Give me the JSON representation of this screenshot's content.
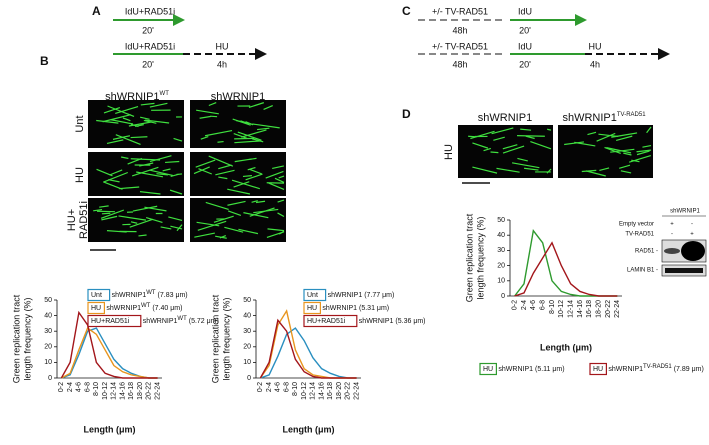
{
  "panel_a": {
    "label": "A",
    "row1": {
      "treatment": "IdU+RAD51i",
      "time": "20'"
    },
    "row2": {
      "treatment": "IdU+RAD51i",
      "time": "20'",
      "chase": "HU",
      "chase_time": "4h"
    }
  },
  "panel_b": {
    "label": "B",
    "columns": [
      {
        "text": "shWRNIP1",
        "sup": "WT"
      },
      {
        "text": "shWRNIP1"
      }
    ],
    "rows": [
      "Unt",
      "HU",
      [
        "HU+",
        "RAD51i"
      ]
    ]
  },
  "panel_c": {
    "label": "C",
    "row1": {
      "pre": "+/- TV-RAD51",
      "pre_time": "48h",
      "treatment": "IdU",
      "time": "20'"
    },
    "row2": {
      "pre": "+/- TV-RAD51",
      "pre_time": "48h",
      "treatment": "IdU",
      "time": "20'",
      "chase": "HU",
      "chase_time": "4h"
    }
  },
  "panel_d": {
    "label": "D",
    "columns": [
      {
        "text": "shWRNIP1"
      },
      {
        "text": "shWRNIP1",
        "sup": "TV-RAD51"
      }
    ],
    "row": "HU",
    "blot": {
      "header": "shWRNIP1",
      "conditions": [
        {
          "name": "Empty vector",
          "lanes": [
            "+",
            "-"
          ]
        },
        {
          "name": "TV-RAD51",
          "lanes": [
            "-",
            "+"
          ]
        }
      ],
      "bands": [
        "RAD51 -",
        "LAMIN B1 -"
      ]
    }
  },
  "chart_data": [
    {
      "type": "line",
      "y_label": [
        "Green replication tract",
        "length frequency (%)"
      ],
      "x_label": "Length (μm)",
      "categories": [
        "0-2",
        "2-4",
        "4-6",
        "6-8",
        "8-10",
        "10-12",
        "12-14",
        "14-16",
        "16-18",
        "18-20",
        "20-22",
        "22-24"
      ],
      "ylim": [
        0,
        50
      ],
      "yticks": [
        0,
        10,
        20,
        30,
        40,
        50
      ],
      "legend": "top",
      "series": [
        {
          "name": "Unt",
          "label": "shWRNIP1",
          "sup": "WT",
          "note": "(7.83 μm)",
          "color": "#2a8fc0",
          "values": [
            0,
            2,
            15,
            30,
            32,
            22,
            12,
            6,
            3,
            1,
            0,
            0
          ]
        },
        {
          "name": "HU",
          "label": "shWRNIP1",
          "sup": "WT",
          "note": "(7.40 μm)",
          "color": "#e8951e",
          "values": [
            0,
            3,
            18,
            32,
            28,
            18,
            8,
            4,
            2,
            1,
            0,
            0
          ]
        },
        {
          "name": "HU+RAD51i",
          "label": "shWRNIP1",
          "sup": "WT",
          "note": "(5.72 μm)",
          "color": "#a3161b",
          "values": [
            0,
            10,
            42,
            34,
            10,
            3,
            1,
            0,
            0,
            0,
            0,
            0
          ]
        }
      ]
    },
    {
      "type": "line",
      "y_label": [
        "Green replication tract",
        "length frequency (%)"
      ],
      "x_label": "Length (μm)",
      "categories": [
        "0-2",
        "2-4",
        "4-6",
        "6-8",
        "8-10",
        "10-12",
        "12-14",
        "14-16",
        "16-18",
        "18-20",
        "20-22",
        "22-24"
      ],
      "ylim": [
        0,
        50
      ],
      "yticks": [
        0,
        10,
        20,
        30,
        40,
        50
      ],
      "legend": "top",
      "series": [
        {
          "name": "Unt",
          "label": "shWRNIP1",
          "note": "(7.77 μm)",
          "color": "#2a8fc0",
          "values": [
            0,
            2,
            14,
            28,
            32,
            24,
            13,
            6,
            3,
            1,
            0,
            0
          ]
        },
        {
          "name": "HU",
          "label": "shWRNIP1",
          "note": "(5.31 μm)",
          "color": "#e8951e",
          "values": [
            0,
            8,
            34,
            43,
            18,
            6,
            2,
            1,
            0,
            0,
            0,
            0
          ]
        },
        {
          "name": "HU+RAD51i",
          "label": "shWRNIP1",
          "note": "(5.36 μm)",
          "color": "#a3161b",
          "values": [
            0,
            10,
            37,
            30,
            12,
            4,
            1,
            0,
            0,
            0,
            0,
            0
          ]
        }
      ]
    },
    {
      "type": "line",
      "y_label": [
        "Green replication tract",
        "length frequency (%)"
      ],
      "x_label": "Length (μm)",
      "categories": [
        "0-2",
        "2-4",
        "4-6",
        "6-8",
        "8-10",
        "10-12",
        "12-14",
        "14-16",
        "16-18",
        "18-20",
        "20-22",
        "22-24"
      ],
      "ylim": [
        0,
        50
      ],
      "yticks": [
        0,
        10,
        20,
        30,
        40,
        50
      ],
      "legend": "bottom",
      "series": [
        {
          "name": "HU",
          "label": "shWRNIP1",
          "note": "(5.11 μm)",
          "color": "#2e9a2e",
          "values": [
            0,
            8,
            43,
            35,
            10,
            3,
            1,
            0,
            0,
            0,
            0,
            0
          ]
        },
        {
          "name": "HU",
          "label": "shWRNIP1",
          "sup": "TV-RAD51",
          "note": "(7.89 μm)",
          "color": "#a3161b",
          "values": [
            0,
            2,
            15,
            25,
            35,
            20,
            8,
            3,
            1,
            0,
            0,
            0
          ]
        }
      ]
    }
  ]
}
